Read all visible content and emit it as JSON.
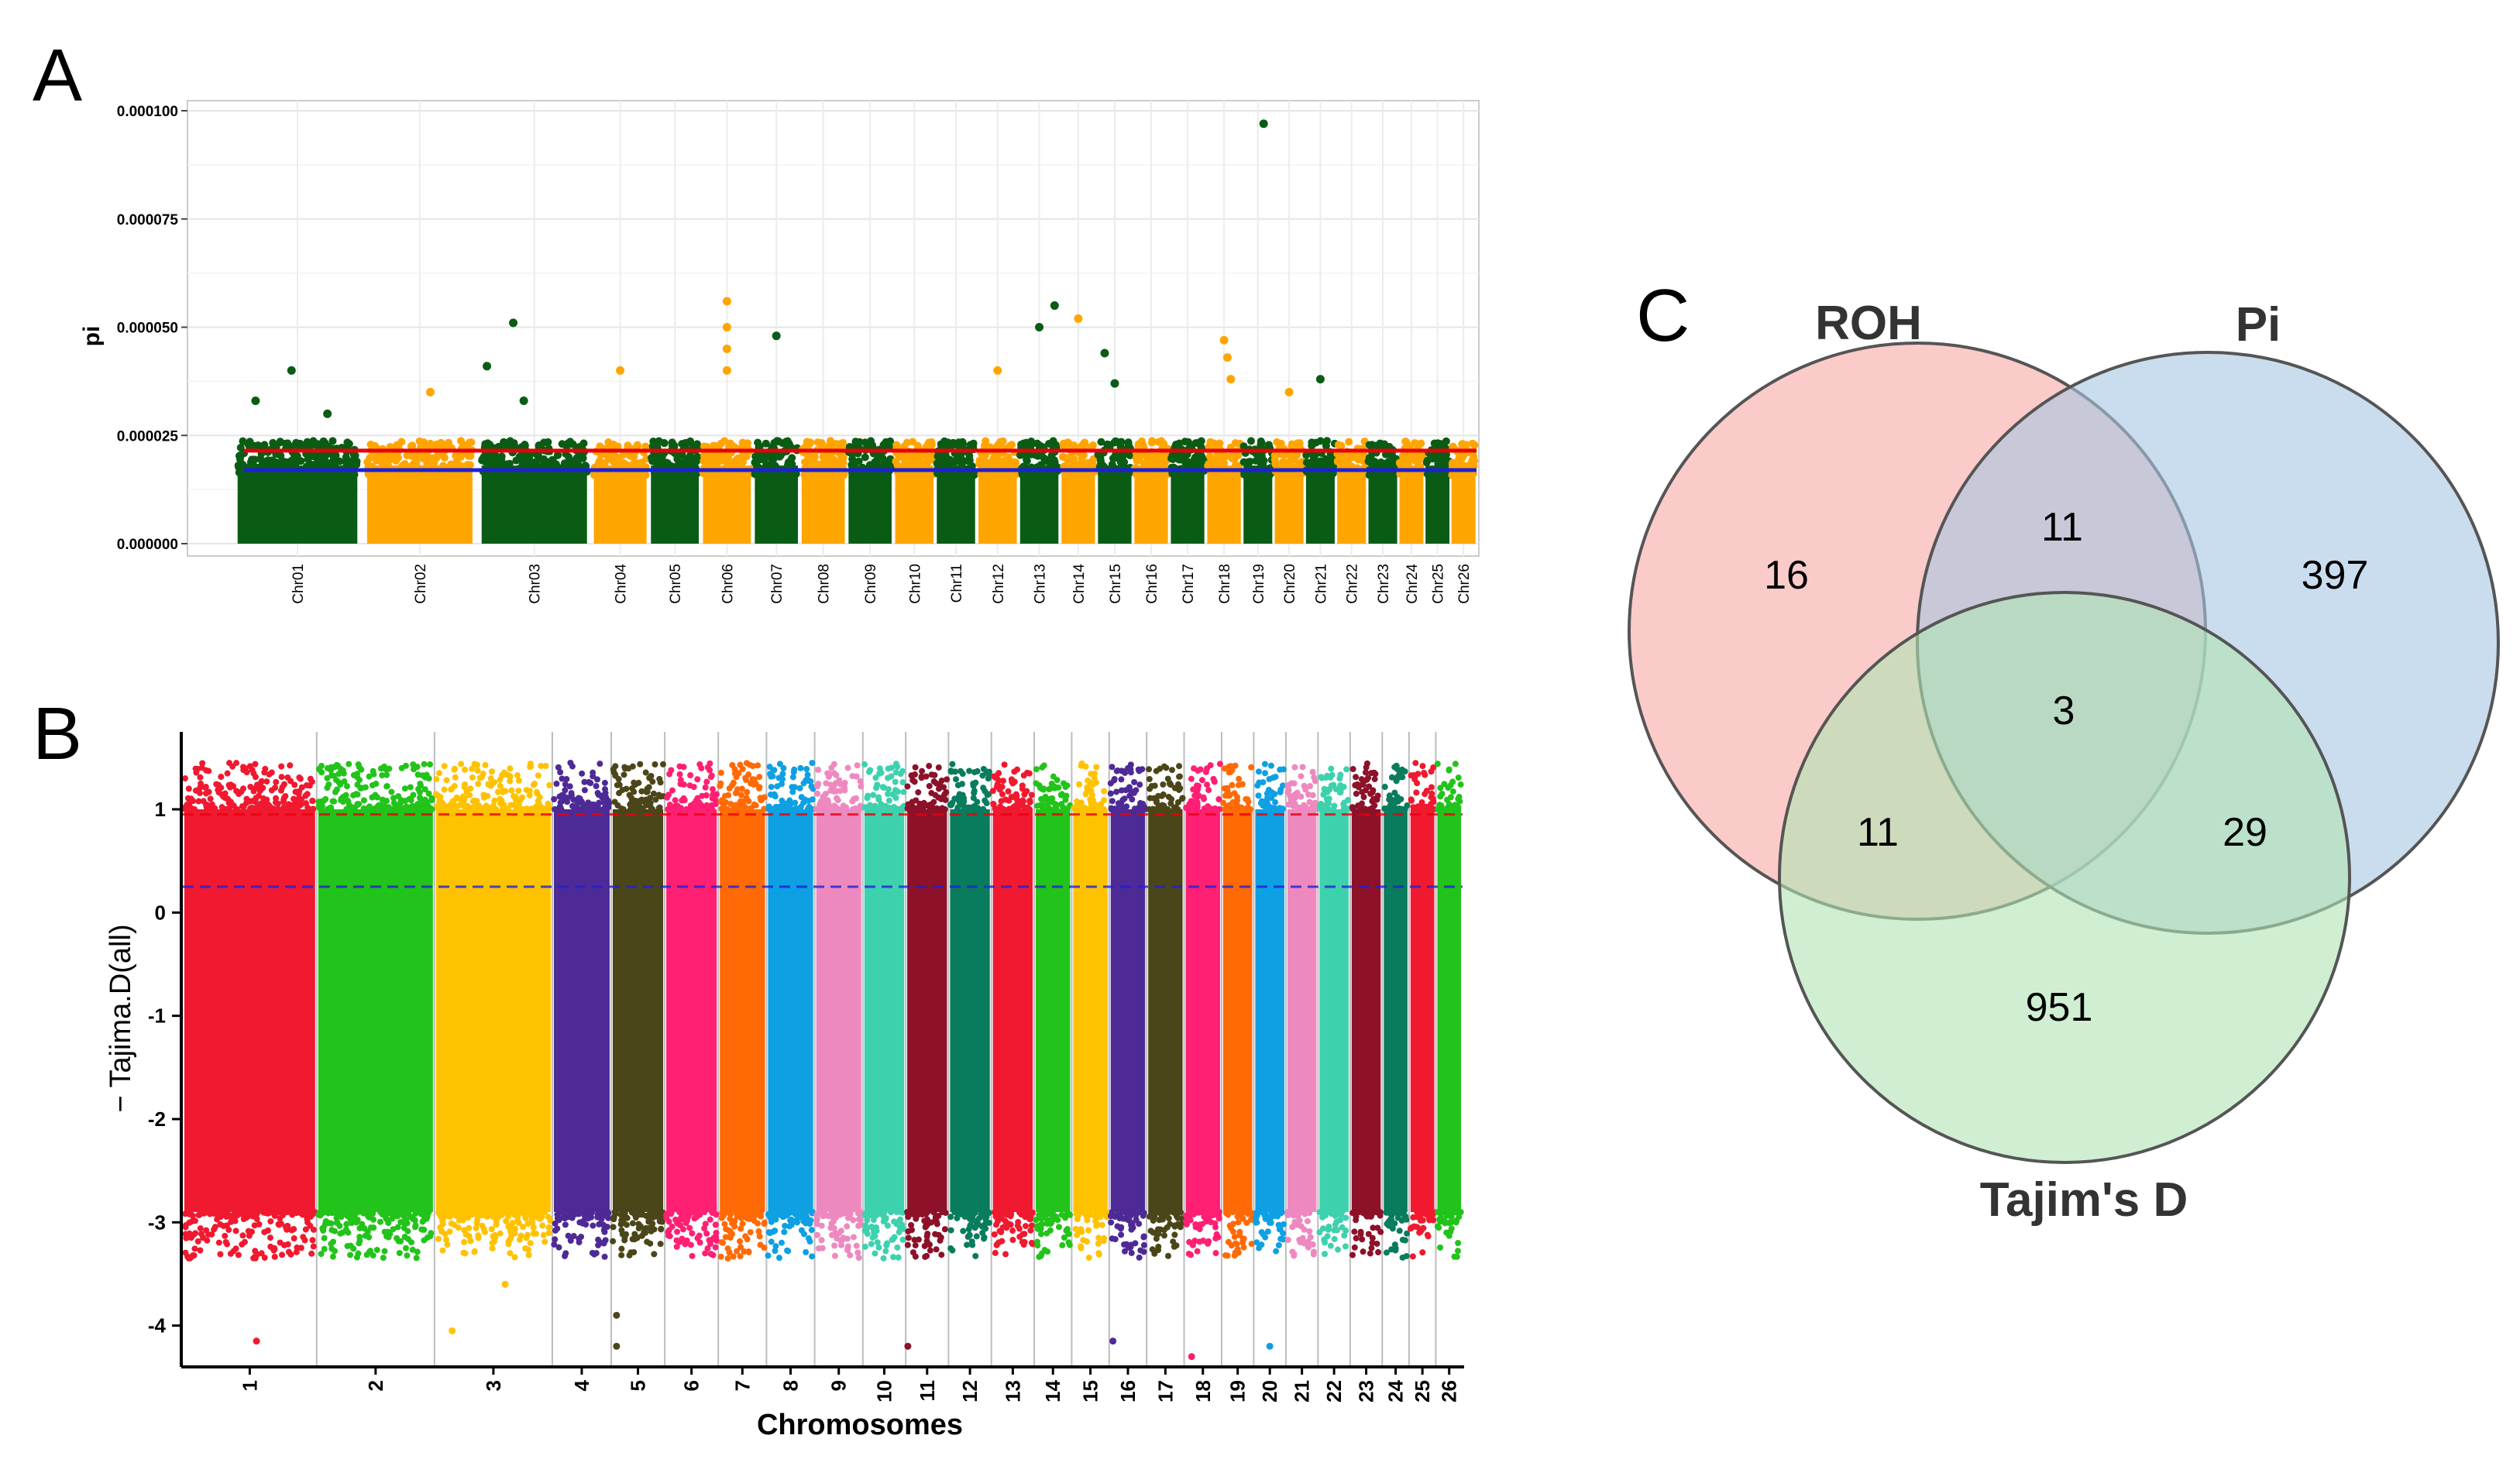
{
  "panel_labels": {
    "a": "A",
    "b": "B",
    "c": "C"
  },
  "chart_data": [
    {
      "type": "scatter",
      "panel": "A",
      "title": "",
      "xlabel": "",
      "ylabel": "pi",
      "ylim": [
        0,
        0.0001
      ],
      "y_ticks": [
        "0.000000",
        "0.000025",
        "0.000050",
        "0.000075",
        "0.000100"
      ],
      "y_tick_values": [
        0,
        2.5e-05,
        5e-05,
        7.5e-05,
        0.0001
      ],
      "chromosomes": [
        "Chr01",
        "Chr02",
        "Chr03",
        "Chr04",
        "Chr05",
        "Chr06",
        "Chr07",
        "Chr08",
        "Chr09",
        "Chr10",
        "Chr11",
        "Chr12",
        "Chr13",
        "Chr14",
        "Chr15",
        "Chr16",
        "Chr17",
        "Chr18",
        "Chr19",
        "Chr20",
        "Chr21",
        "Chr22",
        "Chr23",
        "Chr24",
        "Chr25",
        "Chr26"
      ],
      "chromosome_relative_lengths": [
        2.5,
        2.2,
        2.2,
        1.1,
        1.0,
        1.0,
        0.9,
        0.9,
        0.9,
        0.8,
        0.8,
        0.8,
        0.8,
        0.7,
        0.7,
        0.7,
        0.7,
        0.7,
        0.6,
        0.6,
        0.6,
        0.6,
        0.6,
        0.5,
        0.5,
        0.5
      ],
      "alternating_colors": [
        "#0a5c14",
        "#ffa500"
      ],
      "threshold_red": 2.15e-05,
      "threshold_blue": 1.7e-05,
      "threshold_colors": {
        "red": "#e8000b",
        "blue": "#1f1fd6"
      },
      "bulk_range": [
        0,
        2.2e-05
      ],
      "outliers": [
        {
          "chr": 1,
          "pos": 0.45,
          "y": 4e-05
        },
        {
          "chr": 1,
          "pos": 0.15,
          "y": 3.3e-05
        },
        {
          "chr": 1,
          "pos": 0.75,
          "y": 3e-05
        },
        {
          "chr": 2,
          "pos": 0.6,
          "y": 3.5e-05
        },
        {
          "chr": 3,
          "pos": 0.3,
          "y": 5.1e-05
        },
        {
          "chr": 3,
          "pos": 0.05,
          "y": 4.1e-05
        },
        {
          "chr": 3,
          "pos": 0.4,
          "y": 3.3e-05
        },
        {
          "chr": 4,
          "pos": 0.5,
          "y": 4e-05
        },
        {
          "chr": 6,
          "pos": 0.5,
          "y": 5.6e-05
        },
        {
          "chr": 6,
          "pos": 0.5,
          "y": 5e-05
        },
        {
          "chr": 6,
          "pos": 0.5,
          "y": 4.5e-05
        },
        {
          "chr": 6,
          "pos": 0.5,
          "y": 4e-05
        },
        {
          "chr": 7,
          "pos": 0.5,
          "y": 4.8e-05
        },
        {
          "chr": 12,
          "pos": 0.5,
          "y": 4e-05
        },
        {
          "chr": 13,
          "pos": 0.5,
          "y": 5e-05
        },
        {
          "chr": 13,
          "pos": 0.9,
          "y": 5.5e-05
        },
        {
          "chr": 14,
          "pos": 0.5,
          "y": 5.2e-05
        },
        {
          "chr": 15,
          "pos": 0.2,
          "y": 4.4e-05
        },
        {
          "chr": 15,
          "pos": 0.5,
          "y": 3.7e-05
        },
        {
          "chr": 18,
          "pos": 0.5,
          "y": 4.7e-05
        },
        {
          "chr": 18,
          "pos": 0.6,
          "y": 4.3e-05
        },
        {
          "chr": 18,
          "pos": 0.7,
          "y": 3.8e-05
        },
        {
          "chr": 19,
          "pos": 0.7,
          "y": 9.7e-05
        },
        {
          "chr": 20,
          "pos": 0.5,
          "y": 3.5e-05
        },
        {
          "chr": 21,
          "pos": 0.5,
          "y": 3.8e-05
        }
      ]
    },
    {
      "type": "scatter",
      "panel": "B",
      "title": "",
      "xlabel": "Chromosomes",
      "ylabel": "− Tajima.D(all)",
      "ylim": [
        -4.4,
        1.75
      ],
      "y_ticks": [
        "-4",
        "-3",
        "-2",
        "-1",
        "0",
        "1"
      ],
      "y_tick_values": [
        -4,
        -3,
        -2,
        -1,
        0,
        1
      ],
      "chromosomes": [
        "1",
        "2",
        "3",
        "4",
        "5",
        "6",
        "7",
        "8",
        "9",
        "10",
        "11",
        "12",
        "13",
        "14",
        "15",
        "16",
        "17",
        "18",
        "19",
        "20",
        "21",
        "22",
        "23",
        "24",
        "25",
        "26"
      ],
      "chromosome_relative_lengths": [
        2.5,
        2.2,
        2.2,
        1.1,
        1.0,
        1.0,
        0.9,
        0.9,
        0.9,
        0.8,
        0.8,
        0.8,
        0.8,
        0.7,
        0.7,
        0.7,
        0.7,
        0.7,
        0.6,
        0.6,
        0.6,
        0.6,
        0.6,
        0.5,
        0.5,
        0.5
      ],
      "chromosome_colors": [
        "#f0192f",
        "#22c31a",
        "#ffc200",
        "#4e2a96",
        "#4b4619",
        "#ff1f73",
        "#ff6a06",
        "#0ea0e2",
        "#ee89bf",
        "#3ed1ae",
        "#8c1129",
        "#087c5d",
        "#f0192f",
        "#22c31a",
        "#ffc200",
        "#4e2a96",
        "#4b4619",
        "#ff1f73",
        "#ff6a06",
        "#0ea0e2",
        "#ee89bf",
        "#3ed1ae",
        "#8c1129",
        "#087c5d",
        "#f0192f",
        "#22c31a"
      ],
      "bulk_range": [
        -2.9,
        1.0
      ],
      "threshold_top": 0.95,
      "threshold_mid": 0.25,
      "outliers": [
        {
          "chr": 1,
          "pos": 0.55,
          "y": -4.15
        },
        {
          "chr": 3,
          "pos": 0.15,
          "y": -4.05
        },
        {
          "chr": 3,
          "pos": 0.6,
          "y": -3.6
        },
        {
          "chr": 5,
          "pos": 0.1,
          "y": -4.2
        },
        {
          "chr": 5,
          "pos": 0.1,
          "y": -3.9
        },
        {
          "chr": 11,
          "pos": 0.05,
          "y": -4.2
        },
        {
          "chr": 16,
          "pos": 0.1,
          "y": -4.15
        },
        {
          "chr": 18,
          "pos": 0.2,
          "y": -4.3
        },
        {
          "chr": 20,
          "pos": 0.5,
          "y": -4.2
        }
      ]
    }
  ],
  "venn": {
    "label": "C",
    "sets": [
      {
        "name": "ROH",
        "color": "#f8a9a5"
      },
      {
        "name": "Pi",
        "color": "#a6c6e2"
      },
      {
        "name": "Tajim's D",
        "color": "#b0e4b4"
      }
    ],
    "counts": {
      "roh_only": "16",
      "pi_only": "397",
      "tajima_only": "951",
      "roh_pi": "11",
      "roh_tajima": "11",
      "pi_tajima": "29",
      "all_three": "3"
    }
  }
}
